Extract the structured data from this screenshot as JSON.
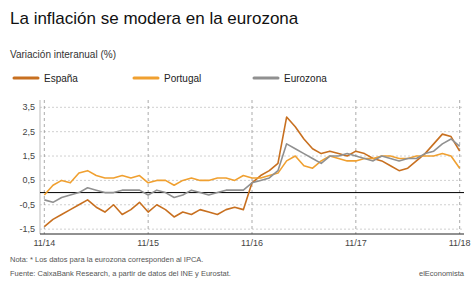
{
  "chart_data": {
    "type": "line",
    "title": "La inflación se modera en la eurozona",
    "subtitle": "Variación interanual (%)",
    "annotations": [
      "Nota: * Los datos para la eurozona corresponden al IPCA.",
      "Fuente: CaixaBank Research, a partir de datos del INE y Eurostat.",
      "elEconomista"
    ],
    "categories": [
      "11/14",
      null,
      null,
      null,
      null,
      null,
      null,
      null,
      null,
      null,
      null,
      null,
      "11/15",
      null,
      null,
      null,
      null,
      null,
      null,
      null,
      null,
      null,
      null,
      null,
      "11/16",
      null,
      null,
      null,
      null,
      null,
      null,
      null,
      null,
      null,
      null,
      null,
      "11/17",
      null,
      null,
      null,
      null,
      null,
      null,
      null,
      null,
      null,
      null,
      null,
      "11/18"
    ],
    "ylim": [
      -1.7,
      3.8
    ],
    "yticks": [
      {
        "value": -1.5,
        "label": "-1,5"
      },
      {
        "value": -0.5,
        "label": "-0,5"
      },
      {
        "value": 0.5,
        "label": "0,5"
      },
      {
        "value": 1.5,
        "label": "1,5"
      },
      {
        "value": 2.5,
        "label": "2,5"
      },
      {
        "value": 3.5,
        "label": "3,5"
      }
    ],
    "grid": true,
    "legend": "top",
    "series": [
      {
        "name": "España",
        "color": "#C87020",
        "values": [
          -1.4,
          -1.1,
          -0.9,
          -0.7,
          -0.5,
          -0.3,
          -0.6,
          -0.8,
          -0.5,
          -0.9,
          -0.7,
          -0.4,
          -0.8,
          -0.5,
          -0.7,
          -1.0,
          -0.8,
          -0.9,
          -0.7,
          -0.8,
          -0.9,
          -0.7,
          -0.6,
          -0.7,
          0.4,
          0.7,
          0.9,
          1.2,
          3.1,
          2.7,
          2.2,
          1.8,
          1.6,
          1.7,
          1.6,
          1.5,
          1.7,
          1.6,
          1.4,
          1.3,
          1.1,
          0.9,
          1.0,
          1.3,
          1.6,
          2.0,
          2.4,
          2.3,
          1.7
        ]
      },
      {
        "name": "Portugal",
        "color": "#F0A030",
        "values": [
          -0.1,
          0.3,
          0.5,
          0.4,
          0.8,
          0.9,
          0.7,
          0.6,
          0.6,
          0.7,
          0.6,
          0.7,
          0.4,
          0.5,
          0.5,
          0.3,
          0.5,
          0.6,
          0.5,
          0.5,
          0.6,
          0.6,
          0.5,
          0.7,
          0.6,
          0.6,
          0.7,
          0.8,
          1.3,
          1.5,
          1.1,
          1.0,
          1.3,
          1.5,
          1.4,
          1.3,
          1.3,
          1.4,
          1.4,
          1.5,
          1.5,
          1.4,
          1.4,
          1.5,
          1.5,
          1.5,
          1.6,
          1.5,
          1.0
        ]
      },
      {
        "name": "Eurozona",
        "color": "#909090",
        "values": [
          -0.3,
          -0.4,
          -0.2,
          -0.1,
          0.0,
          0.2,
          0.1,
          0.0,
          0.0,
          0.1,
          0.1,
          0.1,
          -0.1,
          0.1,
          0.0,
          -0.2,
          -0.1,
          0.1,
          0.0,
          -0.1,
          0.0,
          0.1,
          0.1,
          0.1,
          0.4,
          0.5,
          0.6,
          0.9,
          2.0,
          1.8,
          1.6,
          1.4,
          1.2,
          1.5,
          1.5,
          1.6,
          1.5,
          1.4,
          1.3,
          1.5,
          1.4,
          1.3,
          1.4,
          1.4,
          1.6,
          1.7,
          2.0,
          2.2,
          1.9
        ]
      }
    ]
  }
}
